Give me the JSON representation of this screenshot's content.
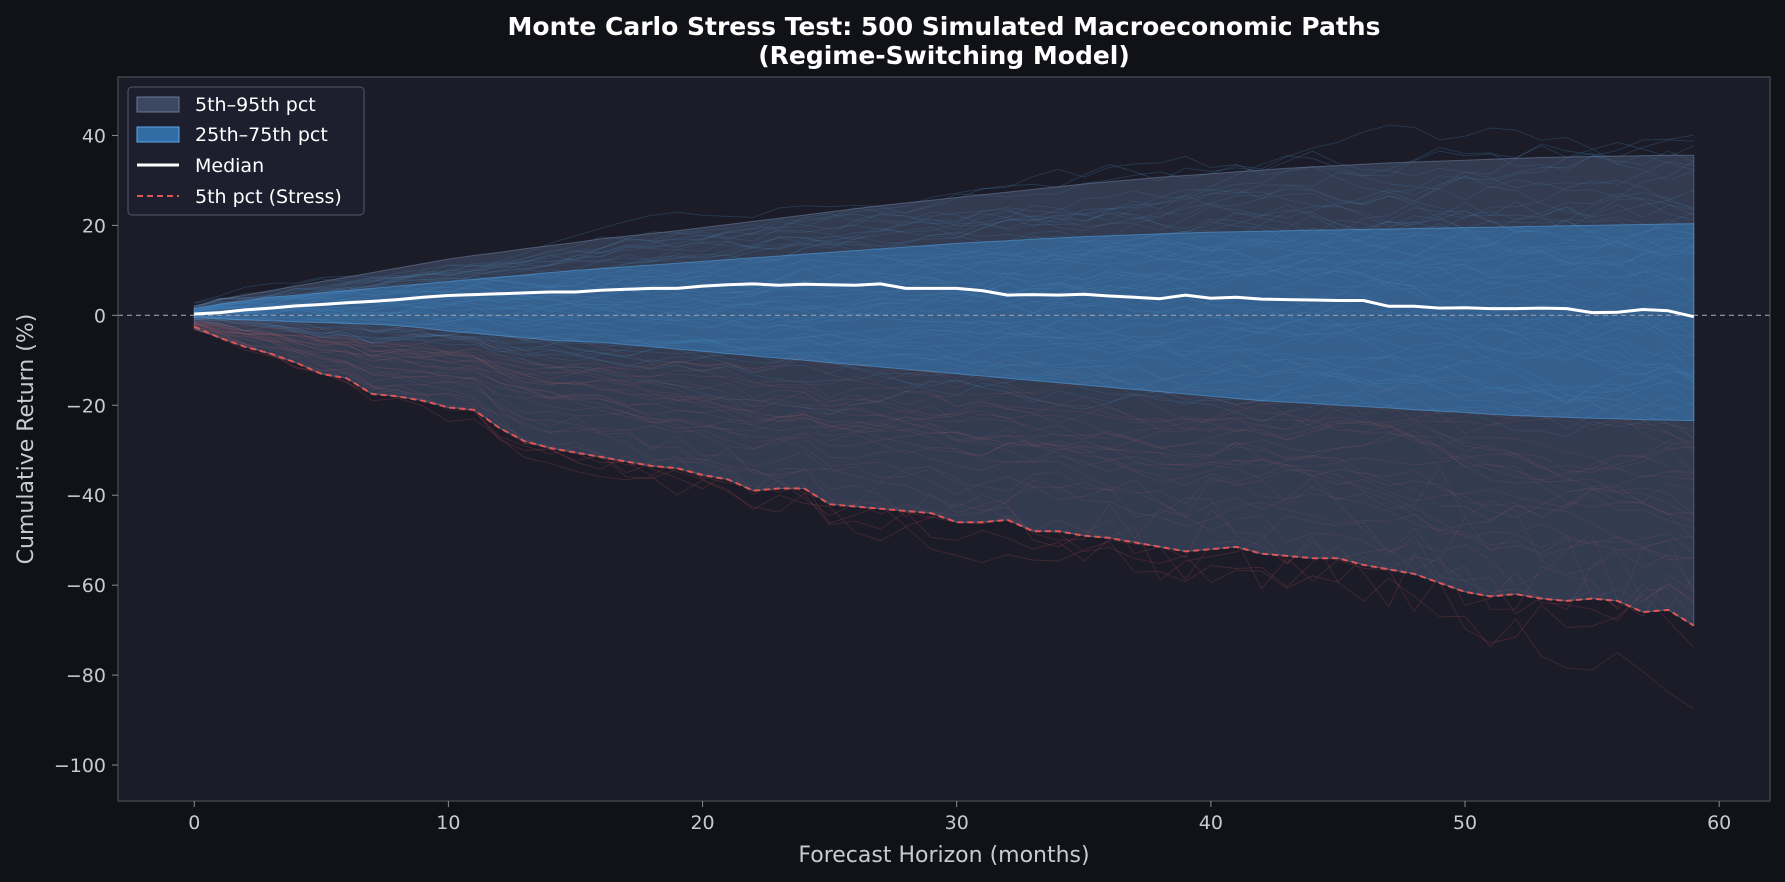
{
  "chart_data": {
    "type": "line",
    "title": "Monte Carlo Stress Test: 500 Simulated Macroeconomic Paths",
    "subtitle": "(Regime-Switching Model)",
    "xlabel": "Forecast Horizon (months)",
    "ylabel": "Cumulative Return (%)",
    "xlim": [
      -3,
      62
    ],
    "ylim": [
      -108,
      53
    ],
    "x_ticks": [
      0,
      10,
      20,
      30,
      40,
      50,
      60
    ],
    "y_ticks": [
      40,
      20,
      0,
      -20,
      -40,
      -60,
      -80,
      -100
    ],
    "x_tick_labels": [
      "0",
      "10",
      "20",
      "30",
      "40",
      "50",
      "60"
    ],
    "y_tick_labels": [
      "40",
      "20",
      "0",
      "−20",
      "−40",
      "−60",
      "−80",
      "−100"
    ],
    "reference_line_y": 0,
    "legend_position": "top-left",
    "x": [
      0,
      1,
      2,
      3,
      4,
      5,
      6,
      7,
      8,
      9,
      10,
      11,
      12,
      13,
      14,
      15,
      16,
      17,
      18,
      19,
      20,
      21,
      22,
      23,
      24,
      25,
      26,
      27,
      28,
      29,
      30,
      31,
      32,
      33,
      34,
      35,
      36,
      37,
      38,
      39,
      40,
      41,
      42,
      43,
      44,
      45,
      46,
      47,
      48,
      49,
      50,
      51,
      52,
      53,
      54,
      55,
      56,
      57,
      58,
      59
    ],
    "series": [
      {
        "name": "5th–95th pct",
        "kind": "band",
        "color": "#4a5a78",
        "lower": [
          -3,
          -5,
          -7,
          -8.5,
          -10.5,
          -13,
          -14,
          -17.5,
          -18,
          -19,
          -20.5,
          -21,
          -25,
          -28,
          -29.5,
          -30.5,
          -31.5,
          -32.5,
          -33.5,
          -34,
          -35.5,
          -36.5,
          -39,
          -38.5,
          -38.5,
          -42,
          -42.5,
          -43,
          -43.5,
          -44,
          -46,
          -46,
          -45.5,
          -48,
          -48,
          -49,
          -49.5,
          -50.5,
          -51.5,
          -52.5,
          -52,
          -51.5,
          -53,
          -53.5,
          -54,
          -54,
          -55.5,
          -56.5,
          -57.5,
          -59.5,
          -61.5,
          -62.5,
          -62,
          -63,
          -63.5,
          -63,
          -63.5,
          -66,
          -65.5,
          -69
        ],
        "upper": [
          2,
          3.5,
          4.5,
          5.5,
          6.5,
          7.5,
          8.5,
          9.5,
          10.5,
          11.5,
          12.5,
          13.3,
          14,
          14.8,
          15.5,
          16.2,
          17,
          17.6,
          18.2,
          18.8,
          19.5,
          20.2,
          20.9,
          21.6,
          22.3,
          23,
          23.7,
          24.4,
          25,
          25.6,
          26.2,
          26.8,
          27.4,
          28,
          28.6,
          29.2,
          29.7,
          30.2,
          30.7,
          31.1,
          31.5,
          31.9,
          32.3,
          32.7,
          33,
          33.3,
          33.6,
          33.9,
          34.1,
          34.3,
          34.5,
          34.7,
          34.9,
          35.1,
          35.2,
          35.3,
          35.4,
          35.5,
          35.6,
          35.6
        ]
      },
      {
        "name": "25th–75th pct",
        "kind": "band",
        "color": "#3a8fd6",
        "lower": [
          -0.5,
          -0.8,
          -1,
          -1.2,
          -1.4,
          -1.6,
          -1.8,
          -2,
          -2.3,
          -2.8,
          -3.5,
          -4,
          -4.5,
          -5,
          -5.5,
          -5.8,
          -6,
          -6.5,
          -7,
          -7.5,
          -8,
          -8.5,
          -9,
          -9.5,
          -10,
          -10.5,
          -11,
          -11.5,
          -12,
          -12.5,
          -13,
          -13.5,
          -14,
          -14.5,
          -15,
          -15.5,
          -16,
          -16.5,
          -17,
          -17.5,
          -18,
          -18.5,
          -19,
          -19.3,
          -19.6,
          -20,
          -20.3,
          -20.6,
          -21,
          -21.3,
          -21.6,
          -22,
          -22.3,
          -22.5,
          -22.7,
          -22.9,
          -23,
          -23.2,
          -23.3,
          -23.4
        ],
        "upper": [
          1.5,
          2.5,
          3.2,
          4,
          4.5,
          5,
          5.5,
          6,
          6.5,
          7,
          7.5,
          8,
          8.5,
          9,
          9.5,
          10,
          10.4,
          10.8,
          11.2,
          11.6,
          12,
          12.4,
          12.8,
          13.2,
          13.6,
          14,
          14.4,
          14.8,
          15.2,
          15.6,
          16,
          16.3,
          16.6,
          16.9,
          17.2,
          17.5,
          17.7,
          17.9,
          18.1,
          18.3,
          18.5,
          18.6,
          18.7,
          18.8,
          18.9,
          19,
          19.1,
          19.2,
          19.3,
          19.4,
          19.5,
          19.6,
          19.7,
          19.8,
          19.9,
          20,
          20.1,
          20.2,
          20.3,
          20.4
        ]
      },
      {
        "name": "Median",
        "kind": "line",
        "color": "#ffffff",
        "values": [
          0.3,
          0.6,
          1.2,
          1.6,
          2.1,
          2.4,
          2.8,
          3.1,
          3.5,
          4,
          4.4,
          4.6,
          4.8,
          5,
          5.2,
          5.2,
          5.6,
          5.8,
          6,
          6,
          6.5,
          6.8,
          7,
          6.7,
          6.9,
          6.8,
          6.7,
          7,
          6,
          6,
          6,
          5.5,
          4.5,
          4.6,
          4.5,
          4.7,
          4.3,
          4,
          3.7,
          4.5,
          3.8,
          4,
          3.6,
          3.5,
          3.4,
          3.3,
          3.3,
          2,
          2,
          1.6,
          1.7,
          1.5,
          1.5,
          1.6,
          1.5,
          0.6,
          0.7,
          1.3,
          1,
          -0.3
        ]
      },
      {
        "name": "5th pct (Stress)",
        "kind": "dashed",
        "color": "#e05555",
        "values": [
          -2.5,
          -5,
          -7,
          -8.5,
          -10.5,
          -13,
          -14,
          -17.5,
          -18,
          -19,
          -20.5,
          -21,
          -25,
          -28,
          -29.5,
          -30.5,
          -31.5,
          -32.5,
          -33.5,
          -34,
          -35.5,
          -36.5,
          -39,
          -38.5,
          -38.5,
          -42,
          -42.5,
          -43,
          -43.5,
          -44,
          -46,
          -46,
          -45.5,
          -48,
          -48,
          -49,
          -49.5,
          -50.5,
          -51.5,
          -52.5,
          -52,
          -51.5,
          -53,
          -53.5,
          -54,
          -54,
          -55.5,
          -56.5,
          -57.5,
          -59.5,
          -61.5,
          -62.5,
          -62,
          -63,
          -63.5,
          -63,
          -63.5,
          -66,
          -65.5,
          -69
        ]
      }
    ],
    "simulated_path_count": 500,
    "path_colors": {
      "upper": "#4fa3e0",
      "lower": "#d05050"
    },
    "colors": {
      "figure_bg": "#111218",
      "axes_bg": "#1b1c28",
      "spine": "#4a4c58",
      "text": "#c8cad0"
    }
  }
}
